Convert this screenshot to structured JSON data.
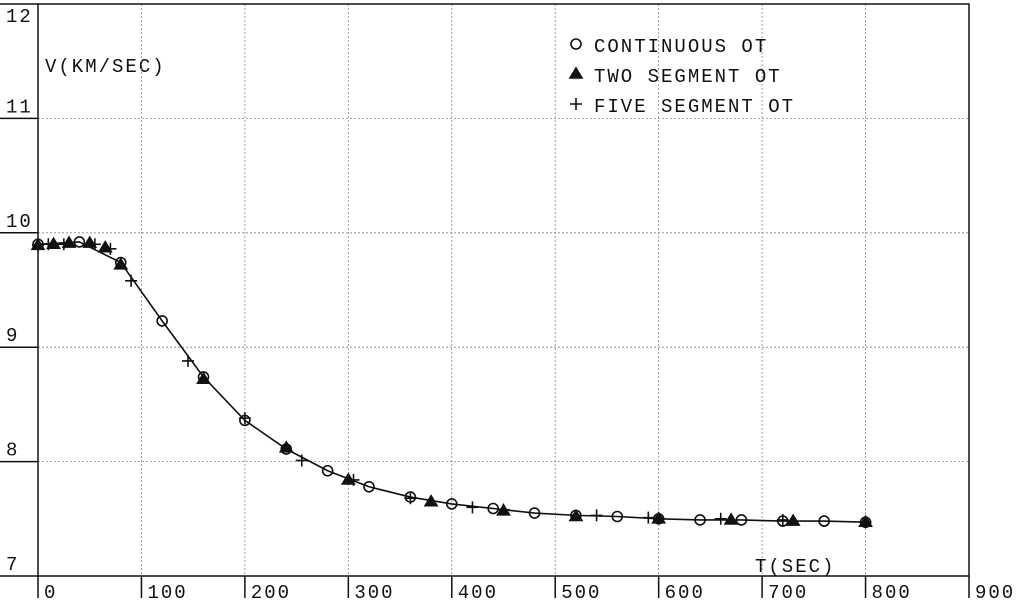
{
  "chart_data": {
    "type": "line",
    "xlabel": "T(SEC)",
    "ylabel": "V(KM/SEC)",
    "xlim": [
      0,
      900
    ],
    "ylim": [
      7,
      12
    ],
    "xticks": [
      0,
      100,
      200,
      300,
      400,
      500,
      600,
      700,
      800,
      900
    ],
    "yticks": [
      7,
      8,
      9,
      10,
      11,
      12
    ],
    "grid": true,
    "legend": "upper right",
    "series": [
      {
        "name": "CONTINUOUS OT",
        "color": "#111111",
        "marker": "circle",
        "line": true,
        "x": [
          0,
          40,
          80,
          120,
          160,
          200,
          240,
          280,
          320,
          360,
          400,
          440,
          480,
          520,
          560,
          600,
          640,
          680,
          720,
          760,
          800
        ],
        "values": [
          9.9,
          9.92,
          9.74,
          9.23,
          8.74,
          8.36,
          8.11,
          7.92,
          7.78,
          7.69,
          7.63,
          7.59,
          7.55,
          7.53,
          7.52,
          7.5,
          7.49,
          7.49,
          7.48,
          7.48,
          7.47
        ]
      },
      {
        "name": "TWO SEGMENT OT",
        "color": "#111111",
        "marker": "triangle",
        "line": false,
        "x": [
          0,
          15,
          30,
          50,
          65,
          80,
          160,
          240,
          300,
          380,
          450,
          520,
          600,
          670,
          730,
          800
        ],
        "values": [
          9.89,
          9.9,
          9.91,
          9.91,
          9.87,
          9.72,
          8.72,
          8.12,
          7.84,
          7.65,
          7.57,
          7.52,
          7.5,
          7.49,
          7.48,
          7.47
        ]
      },
      {
        "name": "FIVE SEGMENT OT",
        "color": "#111111",
        "marker": "plus",
        "line": false,
        "x": [
          0,
          10,
          25,
          55,
          70,
          90,
          145,
          200,
          255,
          305,
          360,
          420,
          450,
          540,
          590,
          660,
          720,
          800
        ],
        "values": [
          9.89,
          9.9,
          9.9,
          9.9,
          9.86,
          9.58,
          8.88,
          8.38,
          8.01,
          7.84,
          7.68,
          7.6,
          7.58,
          7.53,
          7.51,
          7.5,
          7.49,
          7.47
        ]
      }
    ]
  }
}
